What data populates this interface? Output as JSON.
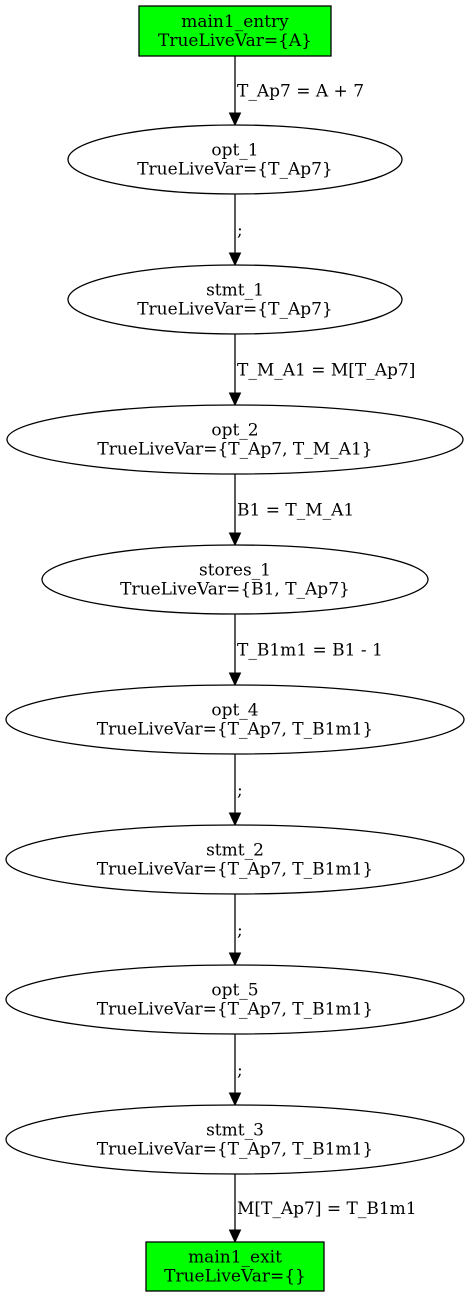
{
  "colors": {
    "terminal_fill": "#00ff00",
    "stroke": "#000000",
    "background": "#ffffff",
    "text": "#000000"
  },
  "nodes": [
    {
      "id": "main1_entry",
      "shape": "box",
      "line1": "main1_entry",
      "line2": "TrueLiveVar={A}"
    },
    {
      "id": "opt_1",
      "shape": "ellipse",
      "line1": "opt_1",
      "line2": "TrueLiveVar={T_Ap7}"
    },
    {
      "id": "stmt_1",
      "shape": "ellipse",
      "line1": "stmt_1",
      "line2": "TrueLiveVar={T_Ap7}"
    },
    {
      "id": "opt_2",
      "shape": "ellipse",
      "line1": "opt_2",
      "line2": "TrueLiveVar={T_Ap7, T_M_A1}"
    },
    {
      "id": "stores_1",
      "shape": "ellipse",
      "line1": "stores_1",
      "line2": "TrueLiveVar={B1, T_Ap7}"
    },
    {
      "id": "opt_4",
      "shape": "ellipse",
      "line1": "opt_4",
      "line2": "TrueLiveVar={T_Ap7, T_B1m1}"
    },
    {
      "id": "stmt_2",
      "shape": "ellipse",
      "line1": "stmt_2",
      "line2": "TrueLiveVar={T_Ap7, T_B1m1}"
    },
    {
      "id": "opt_5",
      "shape": "ellipse",
      "line1": "opt_5",
      "line2": "TrueLiveVar={T_Ap7, T_B1m1}"
    },
    {
      "id": "stmt_3",
      "shape": "ellipse",
      "line1": "stmt_3",
      "line2": "TrueLiveVar={T_Ap7, T_B1m1}"
    },
    {
      "id": "main1_exit",
      "shape": "box",
      "line1": "main1_exit",
      "line2": "TrueLiveVar={}"
    }
  ],
  "edges": [
    {
      "from": "main1_entry",
      "to": "opt_1",
      "label": "T_Ap7 = A + 7"
    },
    {
      "from": "opt_1",
      "to": "stmt_1",
      "label": ";"
    },
    {
      "from": "stmt_1",
      "to": "opt_2",
      "label": "T_M_A1 = M[T_Ap7]"
    },
    {
      "from": "opt_2",
      "to": "stores_1",
      "label": "B1 = T_M_A1"
    },
    {
      "from": "stores_1",
      "to": "opt_4",
      "label": "T_B1m1 = B1 - 1"
    },
    {
      "from": "opt_4",
      "to": "stmt_2",
      "label": ";"
    },
    {
      "from": "stmt_2",
      "to": "opt_5",
      "label": ";"
    },
    {
      "from": "opt_5",
      "to": "stmt_3",
      "label": ";"
    },
    {
      "from": "stmt_3",
      "to": "main1_exit",
      "label": "M[T_Ap7] = T_B1m1"
    }
  ]
}
